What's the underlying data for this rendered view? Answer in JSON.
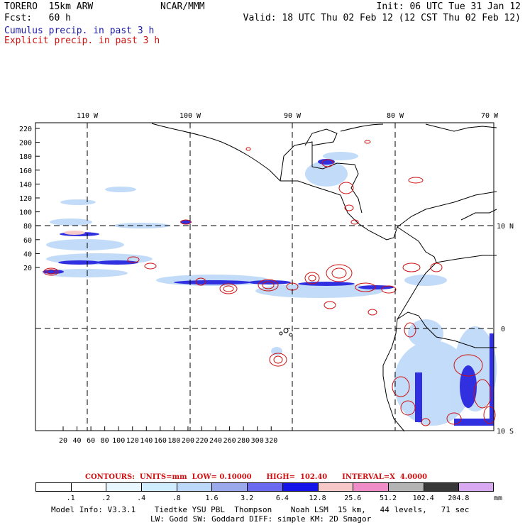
{
  "header": {
    "model": "TORERO  15km ARW",
    "org": "NCAR/MMM",
    "init": "Init: 06 UTC Tue 31 Jan 12",
    "fcst": "Fcst:   60 h",
    "valid": "Valid: 18 UTC Thu 02 Feb 12 (12 CST Thu 02 Feb 12)"
  },
  "legend": {
    "cumulus": "Cumulus precip. in past 3 h",
    "explicit": "Explicit precip. in past 3 h"
  },
  "axes": {
    "top_labels": [
      "110 W",
      "100 W",
      "90 W",
      "80 W",
      "70 W"
    ],
    "right_labels": [
      "10 N",
      "0",
      "10 S"
    ],
    "left_ticks": [
      "220",
      "200",
      "180",
      "160",
      "140",
      "120",
      "100",
      "80",
      "60",
      "40",
      "20"
    ],
    "bottom_ticks": [
      "20",
      "40",
      "60",
      "80",
      "100",
      "120",
      "140",
      "160",
      "180",
      "200",
      "220",
      "240",
      "260",
      "280",
      "300",
      "320"
    ]
  },
  "contours_line": "CONTOURS:  UNITS=mm  LOW= 0.10000      HIGH=  102.40      INTERVAL=X  4.0000",
  "colorbar": {
    "colors": [
      "#ffffff",
      "#ffffff",
      "#e8f6ff",
      "#d0ecff",
      "#bcd8f8",
      "#9aa8ec",
      "#6a6af0",
      "#1414e8",
      "#f6c8c8",
      "#f08cc8",
      "#b4b4b4",
      "#383838",
      "#d8a8f0"
    ],
    "labels": [
      ".1",
      ".2",
      ".4",
      ".8",
      "1.6",
      "3.2",
      "6.4",
      "12.8",
      "25.6",
      "51.2",
      "102.4",
      "204.8"
    ],
    "unit": "mm"
  },
  "footer": {
    "line1": "Model Info: V3.3.1    Tiedtke YSU PBL  Thompson    Noah LSM  15 km,   44 levels,   71 sec",
    "line2": "LW: Godd SW: Goddard DIFF: simple KM: 2D Smagor"
  },
  "colors": {
    "cumulus": "#1414e8",
    "explicit": "#d01010",
    "light_blue": "#bcd8f8"
  }
}
